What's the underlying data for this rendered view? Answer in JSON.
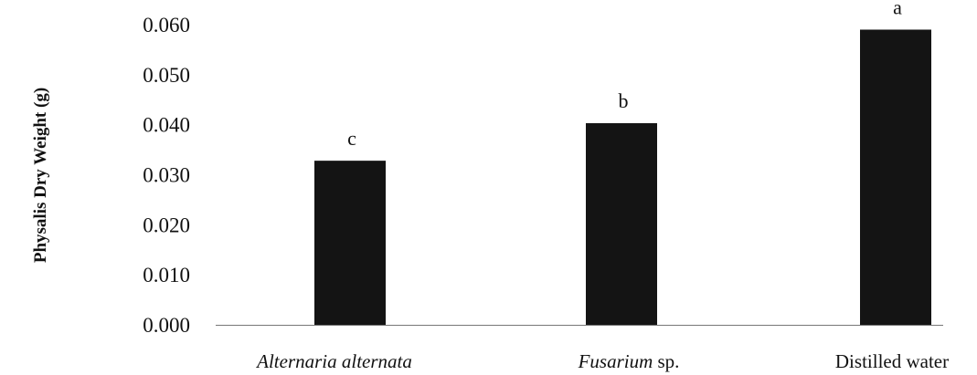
{
  "chart_data": {
    "type": "bar",
    "title": "",
    "xlabel": "",
    "ylabel": "Physalis Dry Weight (g)",
    "ylim": [
      0,
      0.06
    ],
    "yticks": [
      "0.000",
      "0.010",
      "0.020",
      "0.030",
      "0.040",
      "0.050",
      "0.060"
    ],
    "grid": false,
    "categories": [
      {
        "parts": [
          {
            "text": "Alternaria alternata",
            "italic": true
          }
        ]
      },
      {
        "parts": [
          {
            "text": "Fusarium",
            "italic": true
          },
          {
            "text": " sp.",
            "italic": false
          }
        ]
      },
      {
        "parts": [
          {
            "text": "Distilled water",
            "italic": false
          }
        ]
      }
    ],
    "values": [
      0.0328,
      0.0403,
      0.059
    ],
    "significance_letters": [
      "c",
      "b",
      "a"
    ],
    "bar_color": "#141414",
    "axis_color": "#777777"
  }
}
